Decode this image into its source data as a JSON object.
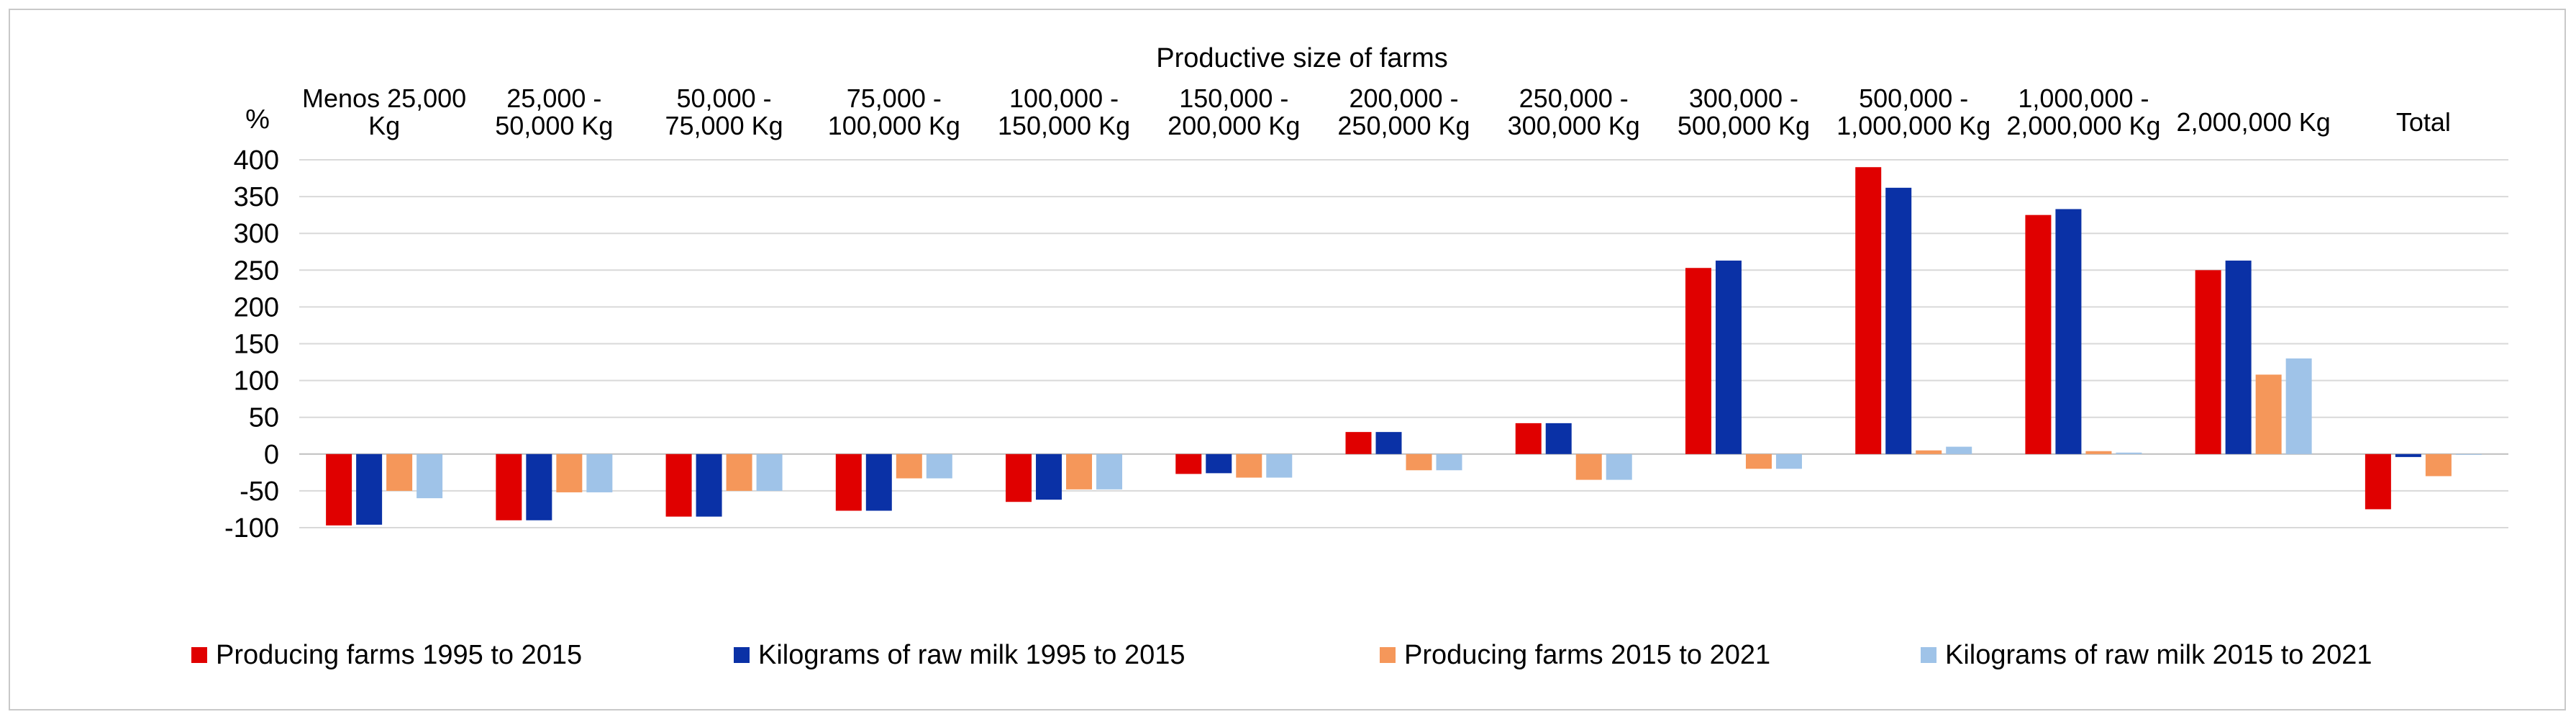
{
  "chart_data": {
    "type": "bar",
    "title": "Productive size of farms",
    "ylabel": "%",
    "ylim": [
      -100,
      400
    ],
    "yticks": [
      400,
      350,
      300,
      250,
      200,
      150,
      100,
      50,
      0,
      -50,
      -100
    ],
    "grid": true,
    "legend_position": "bottom",
    "categories": [
      [
        "Menos 25,000",
        "Kg"
      ],
      [
        "25,000 -",
        "50,000 Kg"
      ],
      [
        "50,000 -",
        "75,000 Kg"
      ],
      [
        "75,000 -",
        "100,000 Kg"
      ],
      [
        "100,000 -",
        "150,000 Kg"
      ],
      [
        "150,000 -",
        "200,000 Kg"
      ],
      [
        "200,000 -",
        "250,000 Kg"
      ],
      [
        "250,000 -",
        "300,000 Kg"
      ],
      [
        "300,000 -",
        "500,000 Kg"
      ],
      [
        "500,000 -",
        "1,000,000 Kg"
      ],
      [
        "1,000,000 -",
        "2,000,000 Kg"
      ],
      [
        "2,000,000 Kg"
      ],
      [
        "Total"
      ]
    ],
    "series": [
      {
        "name": "Producing farms 1995 to 2015",
        "color": "#e00000",
        "values": [
          -97,
          -90,
          -85,
          -77,
          -65,
          -27,
          30,
          42,
          253,
          390,
          325,
          250,
          -75
        ]
      },
      {
        "name": "Kilograms of raw milk 1995 to 2015",
        "color": "#0a31a6",
        "values": [
          -96,
          -90,
          -85,
          -77,
          -62,
          -26,
          30,
          42,
          263,
          362,
          333,
          263,
          -4
        ]
      },
      {
        "name": "Producing farms 2015 to 2021",
        "color": "#f5975a",
        "values": [
          -50,
          -52,
          -50,
          -33,
          -48,
          -32,
          -22,
          -35,
          -20,
          5,
          4,
          108,
          -30
        ]
      },
      {
        "name": "Kilograms of raw milk 2015 to 2021",
        "color": "#9fc3e8",
        "values": [
          -60,
          -52,
          -50,
          -33,
          -48,
          -32,
          -22,
          -35,
          -20,
          10,
          2,
          130,
          0
        ]
      }
    ]
  }
}
